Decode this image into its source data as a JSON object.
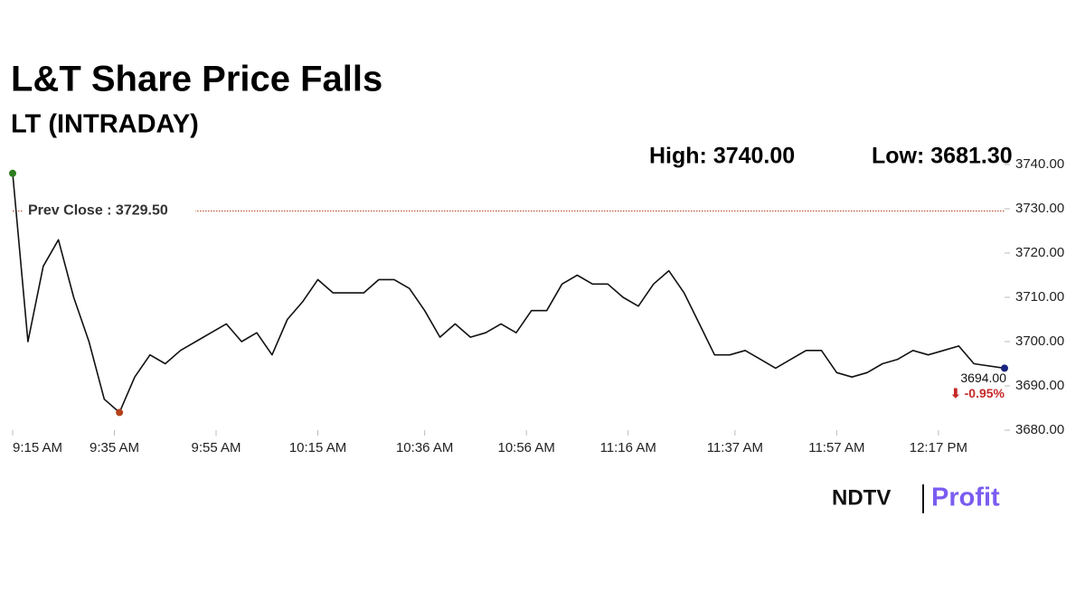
{
  "chart_data": {
    "type": "line",
    "title": "L&T Share Price Falls",
    "subtitle": "LT (INTRADAY)",
    "high_label": "High: 3740.00",
    "low_label": "Low: 3681.30",
    "prev_close": {
      "value": 3729.5,
      "label": "Prev Close : 3729.50"
    },
    "prev_close_color": "#b5421c",
    "last_label": "3694.00",
    "change_label": "⬇ -0.95%",
    "change_color": "#c62828",
    "color": "#111111",
    "marker_colors": {
      "first": "#2e7d1e",
      "min": "#b5421c",
      "last": "#1a237e"
    },
    "x": [
      "9:15 AM",
      "9:18 AM",
      "9:21 AM",
      "9:24 AM",
      "9:27 AM",
      "9:30 AM",
      "9:33 AM",
      "9:36 AM",
      "9:39 AM",
      "9:42 AM",
      "9:45 AM",
      "9:48 AM",
      "9:51 AM",
      "9:54 AM",
      "9:57 AM",
      "10:00 AM",
      "10:03 AM",
      "10:06 AM",
      "10:09 AM",
      "10:12 AM",
      "10:15 AM",
      "10:18 AM",
      "10:21 AM",
      "10:24 AM",
      "10:27 AM",
      "10:30 AM",
      "10:33 AM",
      "10:36 AM",
      "10:39 AM",
      "10:42 AM",
      "10:45 AM",
      "10:48 AM",
      "10:51 AM",
      "10:54 AM",
      "10:57 AM",
      "11:00 AM",
      "11:03 AM",
      "11:06 AM",
      "11:09 AM",
      "11:12 AM",
      "11:15 AM",
      "11:18 AM",
      "11:21 AM",
      "11:24 AM",
      "11:27 AM",
      "11:30 AM",
      "11:33 AM",
      "11:36 AM",
      "11:39 AM",
      "11:42 AM",
      "11:45 AM",
      "11:48 AM",
      "11:51 AM",
      "11:54 AM",
      "11:57 AM",
      "12:00 PM",
      "12:03 PM",
      "12:06 PM",
      "12:09 PM",
      "12:12 PM",
      "12:15 PM",
      "12:18 PM",
      "12:21 PM",
      "12:24 PM",
      "12:30 PM"
    ],
    "values": [
      3738,
      3700,
      3717,
      3723,
      3710,
      3700,
      3687,
      3684,
      3692,
      3697,
      3695,
      3698,
      3700,
      3702,
      3704,
      3700,
      3702,
      3697,
      3705,
      3709,
      3714,
      3711,
      3711,
      3711,
      3714,
      3714,
      3712,
      3707,
      3701,
      3704,
      3701,
      3702,
      3704,
      3702,
      3707,
      3707,
      3713,
      3715,
      3713,
      3713,
      3710,
      3708,
      3713,
      3716,
      3711,
      3704,
      3697,
      3697,
      3698,
      3696,
      3694,
      3696,
      3698,
      3698,
      3693,
      3692,
      3693,
      3695,
      3696,
      3698,
      3697,
      3698,
      3699,
      3695,
      3694
    ],
    "xlim": [
      "9:15 AM",
      "12:30 PM"
    ],
    "xticks": [
      "9:15 AM",
      "9:35 AM",
      "9:55 AM",
      "10:15 AM",
      "10:36 AM",
      "10:56 AM",
      "11:16 AM",
      "11:37 AM",
      "11:57 AM",
      "12:17 PM"
    ],
    "ylim": [
      3680,
      3740
    ],
    "yticks": [
      {
        "value": 3680,
        "label": "3680.00"
      },
      {
        "value": 3690,
        "label": "3690.00"
      },
      {
        "value": 3700,
        "label": "3700.00"
      },
      {
        "value": 3710,
        "label": "3710.00"
      },
      {
        "value": 3720,
        "label": "3720.00"
      },
      {
        "value": 3730,
        "label": "3730.00"
      },
      {
        "value": 3740,
        "label": "3740.00"
      }
    ],
    "brand": {
      "name": "NDTV",
      "product": "Profit"
    }
  }
}
